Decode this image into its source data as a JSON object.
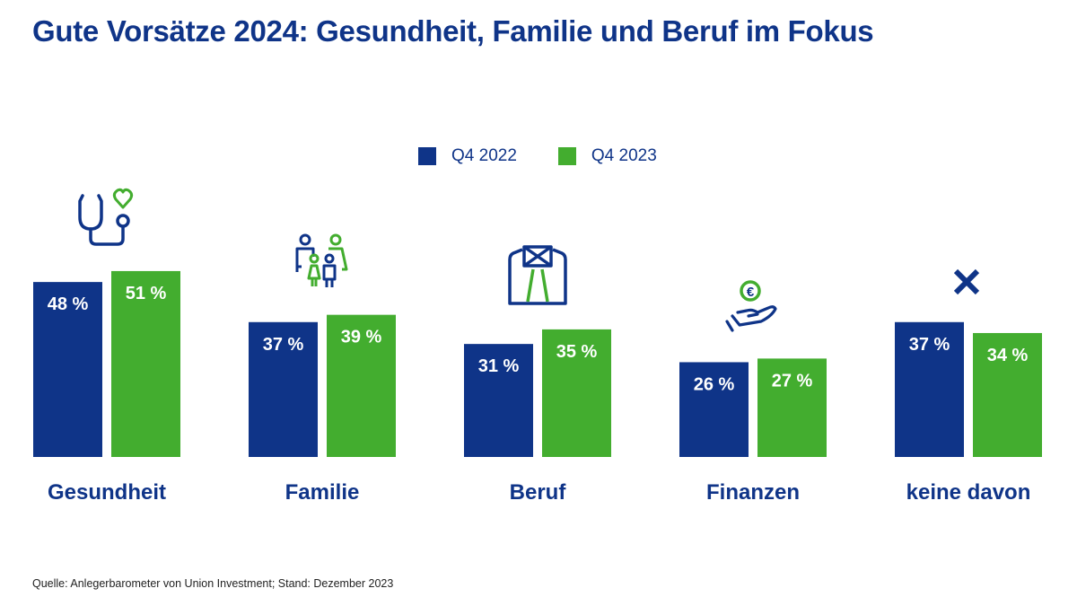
{
  "title": "Gute Vorsätze 2024: Gesundheit, Familie und Beruf im Fokus",
  "source": "Quelle: Anlegerbarometer von Union Investment; Stand: Dezember 2023",
  "colors": {
    "q4_2022": "#0f3488",
    "q4_2023": "#43ad2f",
    "text": "#0f3488"
  },
  "chart_data": {
    "type": "bar",
    "title": "Gute Vorsätze 2024: Gesundheit, Familie und Beruf im Fokus",
    "xlabel": "",
    "ylabel": "",
    "ylim": [
      0,
      55
    ],
    "grid": false,
    "legend_position": "top-center",
    "categories": [
      "Gesundheit",
      "Familie",
      "Beruf",
      "Finanzen",
      "keine davon"
    ],
    "category_icons": [
      "stethoscope-heart-icon",
      "family-icon",
      "shirt-tie-icon",
      "hand-euro-coin-icon",
      "cross-icon"
    ],
    "series": [
      {
        "name": "Q4 2022",
        "color": "#0f3488",
        "values": [
          48,
          37,
          31,
          26,
          37
        ],
        "labels": [
          "48 %",
          "37 %",
          "31 %",
          "26 %",
          "37 %"
        ]
      },
      {
        "name": "Q4 2023",
        "color": "#43ad2f",
        "values": [
          51,
          39,
          35,
          27,
          34
        ],
        "labels": [
          "51 %",
          "39 %",
          "35 %",
          "27 %",
          "34 %"
        ]
      }
    ]
  }
}
